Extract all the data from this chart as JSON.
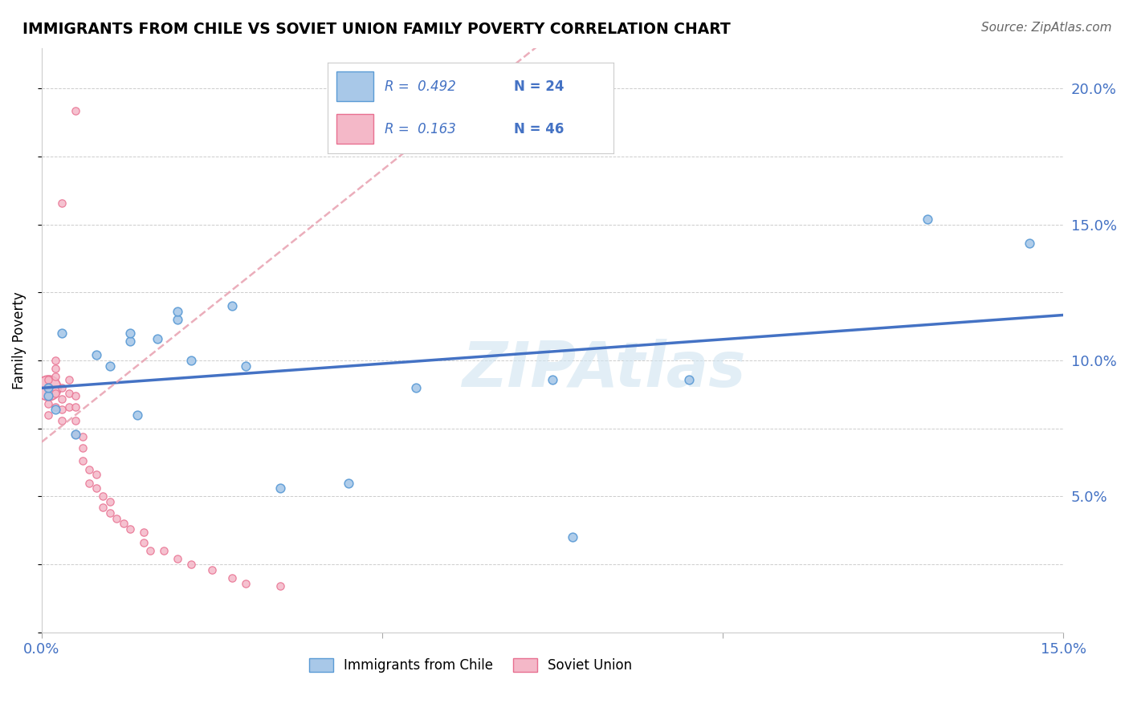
{
  "title": "IMMIGRANTS FROM CHILE VS SOVIET UNION FAMILY POVERTY CORRELATION CHART",
  "source": "Source: ZipAtlas.com",
  "ylabel": "Family Poverty",
  "xlim": [
    0.0,
    0.15
  ],
  "ylim": [
    0.0,
    0.215
  ],
  "chile_R": 0.492,
  "chile_N": 24,
  "soviet_R": 0.163,
  "soviet_N": 46,
  "chile_color": "#A8C8E8",
  "chile_edge_color": "#5B9BD5",
  "soviet_color": "#F4B8C8",
  "soviet_edge_color": "#E87090",
  "chile_line_color": "#4472C4",
  "soviet_line_color": "#E8A0B0",
  "watermark": "ZIPAtlas",
  "legend_text_color": "#4472C4",
  "grid_color": "#C8C8C8",
  "right_tick_color": "#4472C4",
  "xtick_color": "#4472C4",
  "chile_x": [
    0.001,
    0.001,
    0.002,
    0.003,
    0.005,
    0.008,
    0.01,
    0.013,
    0.013,
    0.014,
    0.017,
    0.02,
    0.02,
    0.022,
    0.028,
    0.03,
    0.035,
    0.045,
    0.055,
    0.075,
    0.078,
    0.095,
    0.13,
    0.145
  ],
  "chile_y": [
    0.087,
    0.09,
    0.082,
    0.11,
    0.073,
    0.102,
    0.098,
    0.107,
    0.11,
    0.08,
    0.108,
    0.115,
    0.118,
    0.1,
    0.12,
    0.098,
    0.053,
    0.055,
    0.09,
    0.093,
    0.035,
    0.093,
    0.152,
    0.143
  ],
  "soviet_x_large": [
    0.001
  ],
  "soviet_y_large": [
    0.09
  ],
  "soviet_large_size": 500,
  "soviet_x": [
    0.001,
    0.001,
    0.001,
    0.001,
    0.001,
    0.002,
    0.002,
    0.002,
    0.002,
    0.002,
    0.003,
    0.003,
    0.003,
    0.003,
    0.004,
    0.004,
    0.004,
    0.005,
    0.005,
    0.005,
    0.005,
    0.006,
    0.006,
    0.006,
    0.007,
    0.007,
    0.008,
    0.008,
    0.009,
    0.009,
    0.01,
    0.01,
    0.011,
    0.012,
    0.013,
    0.015,
    0.015,
    0.016,
    0.018,
    0.02,
    0.022,
    0.025,
    0.028,
    0.03,
    0.035
  ],
  "soviet_y": [
    0.09,
    0.093,
    0.087,
    0.084,
    0.08,
    0.097,
    0.1,
    0.094,
    0.088,
    0.083,
    0.09,
    0.086,
    0.082,
    0.078,
    0.093,
    0.088,
    0.083,
    0.087,
    0.083,
    0.078,
    0.073,
    0.072,
    0.068,
    0.063,
    0.06,
    0.055,
    0.058,
    0.053,
    0.05,
    0.046,
    0.048,
    0.044,
    0.042,
    0.04,
    0.038,
    0.037,
    0.033,
    0.03,
    0.03,
    0.027,
    0.025,
    0.023,
    0.02,
    0.018,
    0.017
  ],
  "soviet_outlier1_x": [
    0.005
  ],
  "soviet_outlier1_y": [
    0.192
  ],
  "soviet_outlier2_x": [
    0.003
  ],
  "soviet_outlier2_y": [
    0.158
  ],
  "chile_marker_size": 60,
  "soviet_marker_size": 45
}
